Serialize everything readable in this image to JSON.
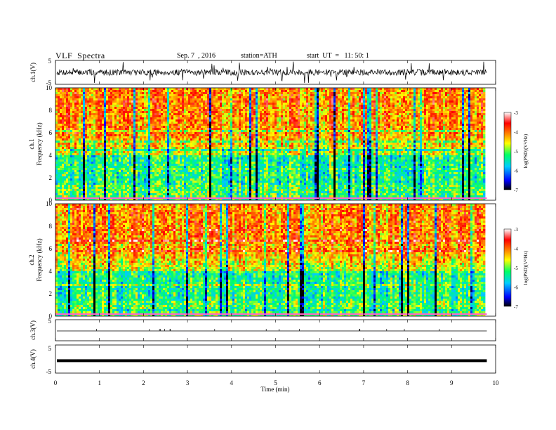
{
  "header": {
    "title": "VLF  Spectra",
    "date": "Sep. 7  , 2016",
    "station": "station=ATH",
    "start": "start  UT  =   11: 50: 1"
  },
  "chart_data": {
    "type": "heatmap",
    "xlabel": "Time  (min)",
    "xlim": [
      0,
      10
    ],
    "x_ticks": [
      "0",
      "1",
      "2",
      "3",
      "4",
      "5",
      "6",
      "7",
      "8",
      "9",
      "10"
    ],
    "data_end_min": 9.8,
    "panels": [
      {
        "id": "ch1-wave",
        "kind": "waveform",
        "ylabel": "ch.1(V)",
        "ylim": [
          -5,
          5
        ],
        "y_ticks": [
          "5",
          "-5"
        ],
        "style": "noisy"
      },
      {
        "id": "ch1-spec",
        "kind": "spectrogram",
        "ylabel_channel": "ch.1",
        "ylabel": "Frequency  (kHz)",
        "ylim": [
          0,
          10
        ],
        "y_ticks": [
          "0",
          "2",
          "4",
          "6",
          "8",
          "10"
        ],
        "seed": 17
      },
      {
        "id": "ch2-spec",
        "kind": "spectrogram",
        "ylabel_channel": "ch.2",
        "ylabel": "Frequency  (kHz)",
        "ylim": [
          0,
          10
        ],
        "y_ticks": [
          "0",
          "2",
          "4",
          "6",
          "8",
          "10"
        ],
        "seed": 41
      },
      {
        "id": "ch3-wave",
        "kind": "waveform",
        "ylabel": "ch.3(V)",
        "ylim": [
          -5,
          5
        ],
        "y_ticks": [
          "5"
        ],
        "style": "flat"
      },
      {
        "id": "ch4-wave",
        "kind": "waveform",
        "ylabel": "ch.4(V)",
        "ylim": [
          -5,
          5
        ],
        "y_ticks": [
          "5",
          "-5"
        ],
        "style": "thick"
      }
    ],
    "colorbar": {
      "label": "log(PSD)(V²/Hz)",
      "range": [
        -7,
        -3
      ],
      "ticks": [
        "-3",
        "-4",
        "-5",
        "-6",
        "-7"
      ],
      "colors": [
        "#000000",
        "#0000ff",
        "#00ccff",
        "#00ff66",
        "#ffff00",
        "#ff8800",
        "#ff0000",
        "#ffffff"
      ]
    }
  }
}
